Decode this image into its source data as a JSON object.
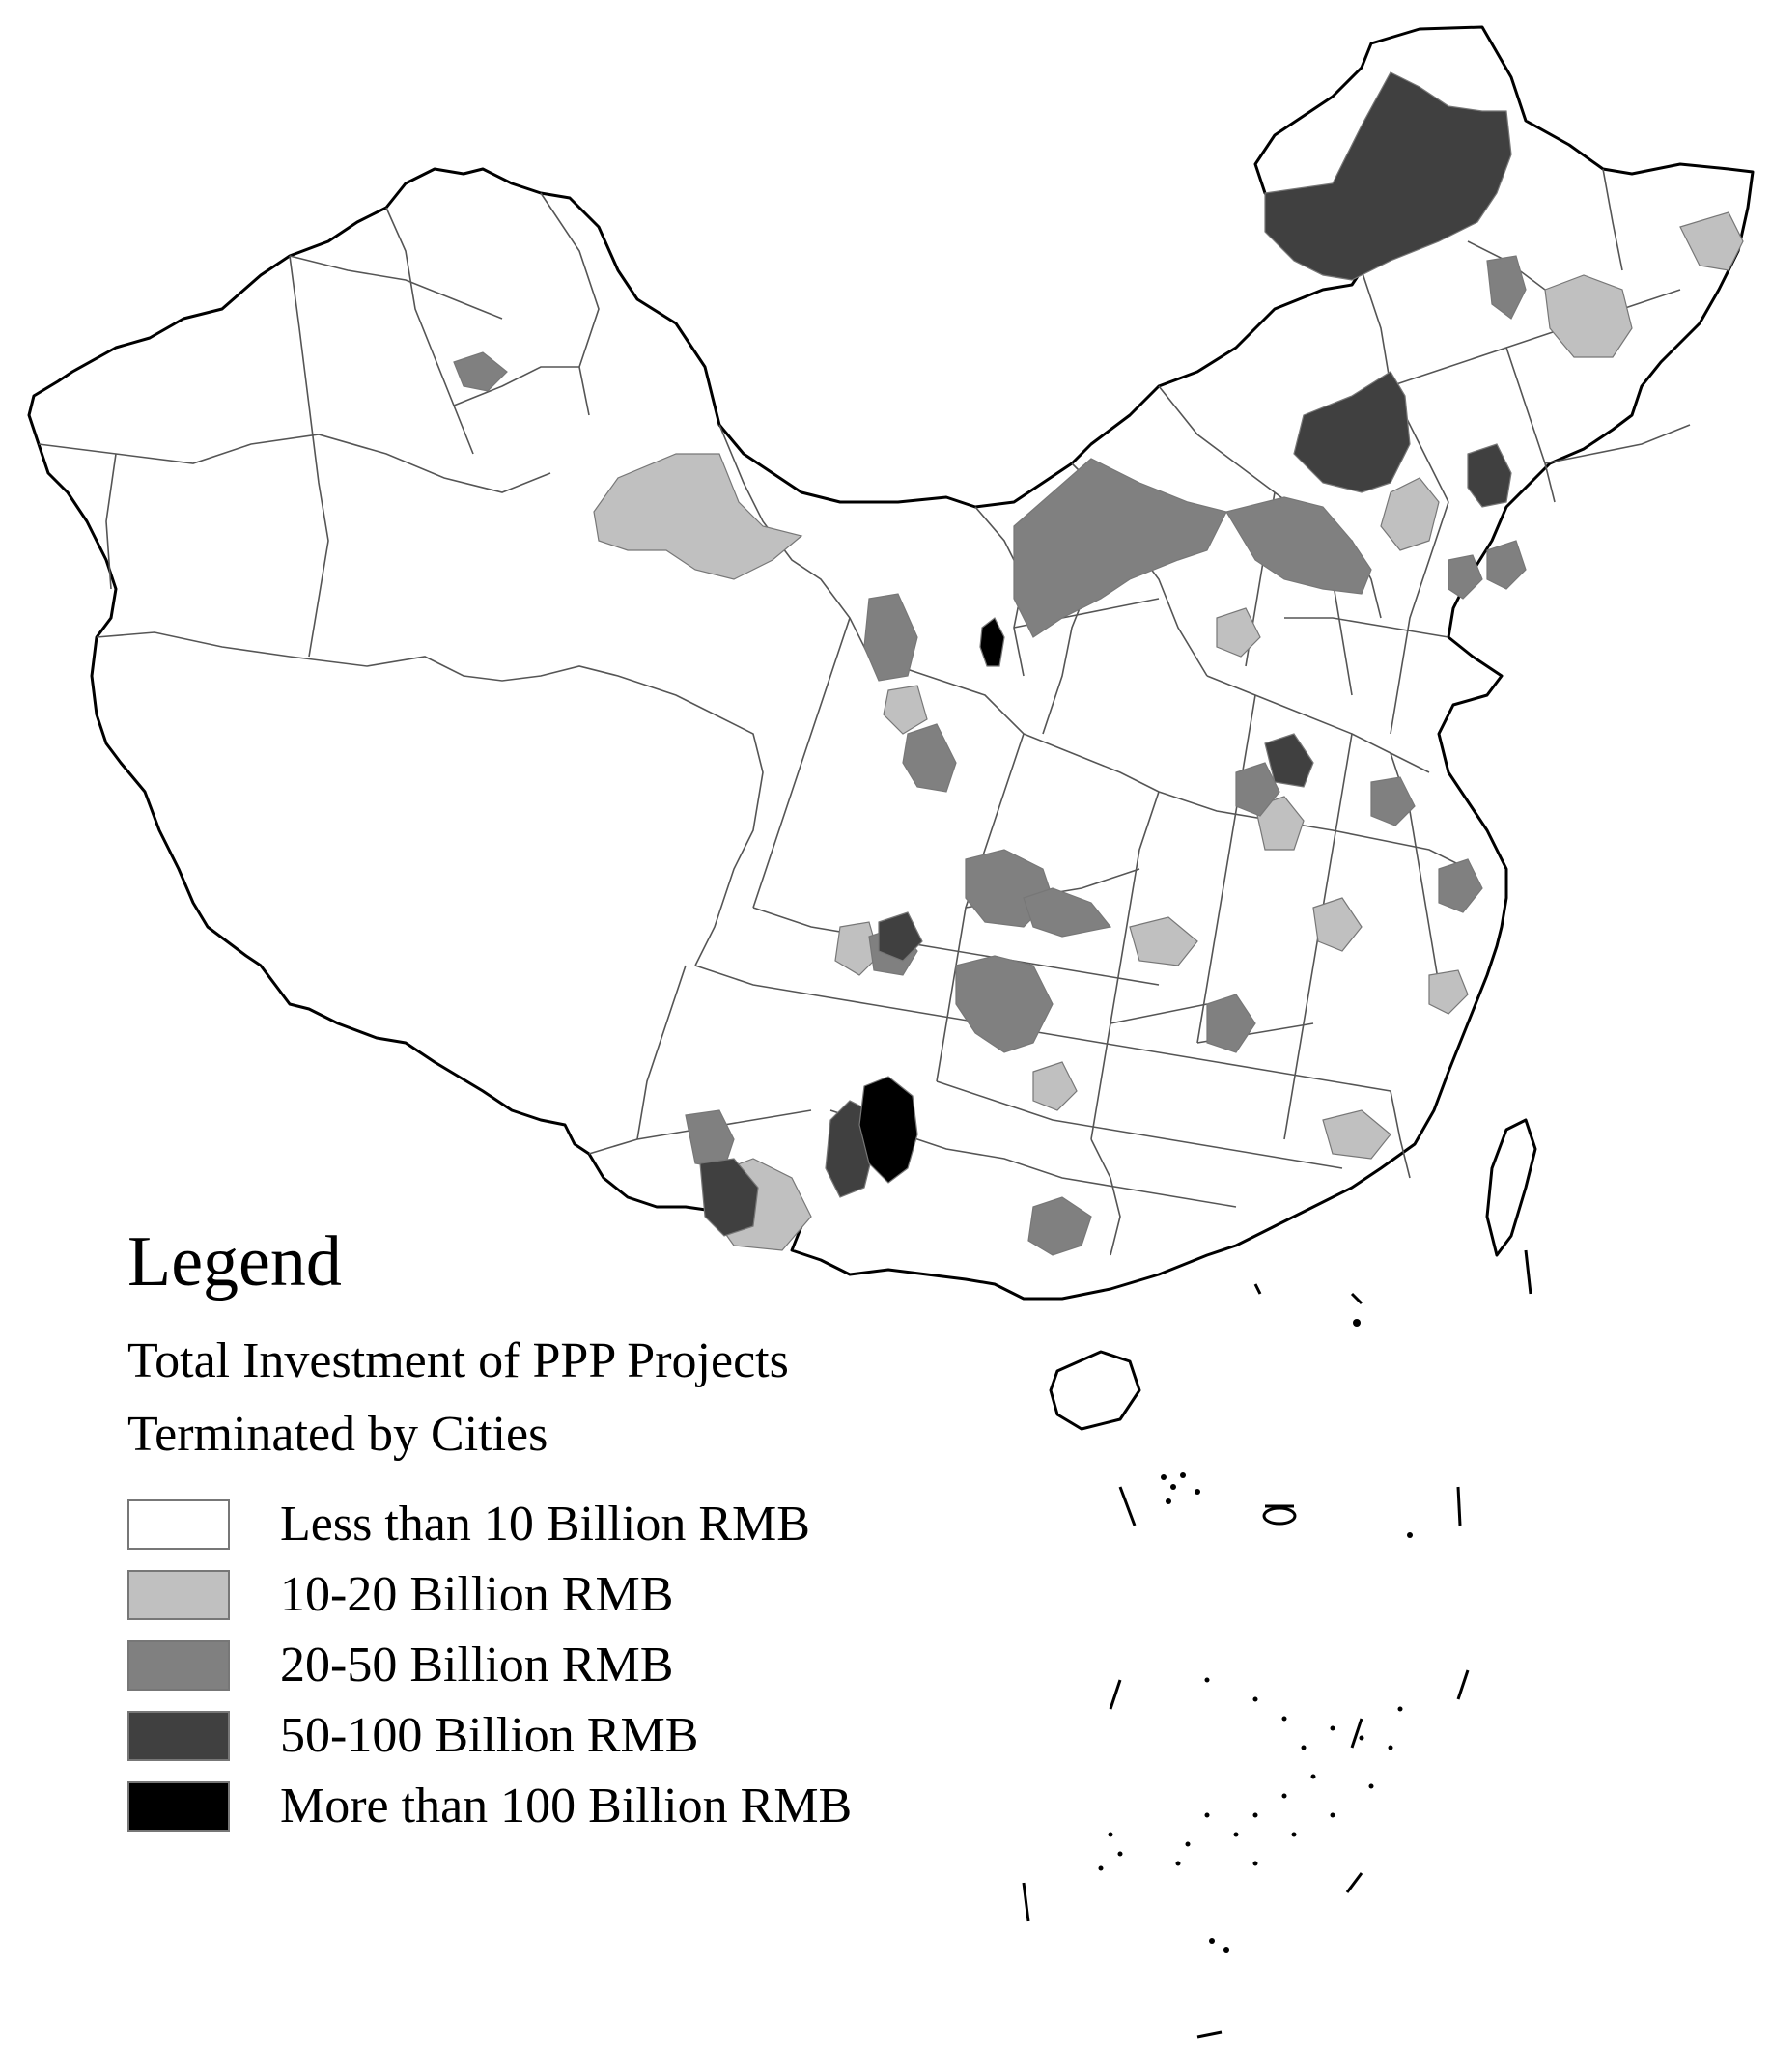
{
  "legend": {
    "title": "Legend",
    "subtitle_line1": "Total Investment of PPP Projects",
    "subtitle_line2": "Terminated by Cities",
    "items": [
      {
        "label": "Less than 10 Billion RMB",
        "color": "#ffffff"
      },
      {
        "label": "10-20 Billion RMB",
        "color": "#c0c0c0"
      },
      {
        "label": "20-50 Billion RMB",
        "color": "#808080"
      },
      {
        "label": "50-100 Billion RMB",
        "color": "#404040"
      },
      {
        "label": "More than 100 Billion RMB",
        "color": "#000000"
      }
    ]
  }
}
